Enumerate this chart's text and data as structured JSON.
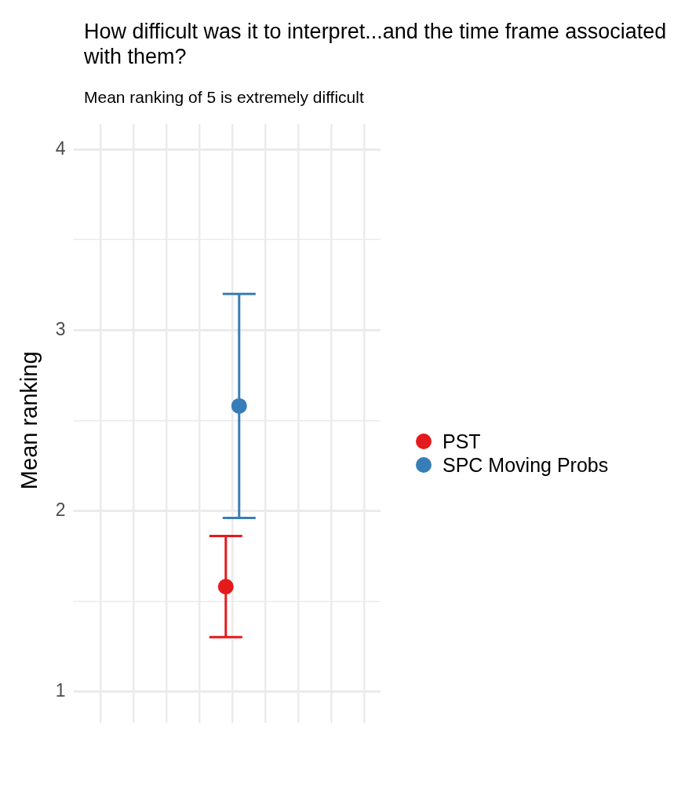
{
  "chart_data": {
    "type": "scatter",
    "title": "How difficult was it to interpret...and the time frame associated with them?",
    "subtitle": "Mean ranking of 5 is extremely difficult",
    "ylabel": "Mean ranking",
    "categories": [
      null,
      null,
      null,
      null,
      null,
      null,
      null,
      null,
      null
    ],
    "series": [
      {
        "name": "PST",
        "color": "#e41a1c",
        "values": [
          null,
          null,
          null,
          null,
          1.58,
          null,
          null,
          null,
          null
        ],
        "errors": [
          null,
          null,
          null,
          null,
          [
            1.3,
            1.86
          ],
          null,
          null,
          null,
          null
        ]
      },
      {
        "name": "SPC Moving Probs",
        "color": "#377eb8",
        "values": [
          null,
          null,
          null,
          null,
          2.58,
          null,
          null,
          null,
          null
        ],
        "errors": [
          null,
          null,
          null,
          null,
          [
            1.96,
            3.2
          ],
          null,
          null,
          null,
          null
        ]
      }
    ],
    "ylim": [
      0.86,
      4.14
    ],
    "yticks": [
      1,
      {
        "value": 1.5,
        "label": null
      },
      2,
      {
        "value": 2.5,
        "label": null
      },
      3,
      {
        "value": 3.5,
        "label": null
      },
      4
    ],
    "grid": true,
    "legend": "right",
    "marker": "circle"
  }
}
